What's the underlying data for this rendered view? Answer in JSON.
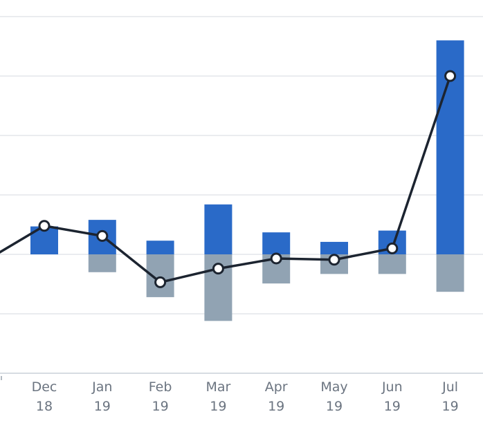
{
  "chart_data": {
    "type": "bar",
    "categories": [
      {
        "month": "Dec",
        "year": "18"
      },
      {
        "month": "Jan",
        "year": "19"
      },
      {
        "month": "Feb",
        "year": "19"
      },
      {
        "month": "Mar",
        "year": "19"
      },
      {
        "month": "Apr",
        "year": "19"
      },
      {
        "month": "May",
        "year": "19"
      },
      {
        "month": "Jun",
        "year": "19"
      },
      {
        "month": "Jul",
        "year": "19"
      }
    ],
    "series": [
      {
        "kind": "bar",
        "color": "#2a6ac8",
        "values": [
          0.47,
          0.58,
          0.23,
          0.84,
          0.37,
          0.21,
          0.4,
          3.6
        ]
      },
      {
        "kind": "bar",
        "color": "#91a3b3",
        "values": [
          0,
          -0.3,
          -0.72,
          -1.12,
          -0.49,
          -0.33,
          -0.33,
          -0.63
        ]
      },
      {
        "kind": "line",
        "color": "#1c2430",
        "values": [
          0.48,
          0.31,
          -0.47,
          -0.24,
          -0.07,
          -0.09,
          0.1,
          3.0
        ]
      }
    ],
    "line_lead_in": -0.1,
    "ylim": [
      -2,
      4
    ],
    "gridlines": [
      -2,
      -1,
      0,
      1,
      2,
      3,
      4
    ],
    "grid": true,
    "legend": "none"
  }
}
